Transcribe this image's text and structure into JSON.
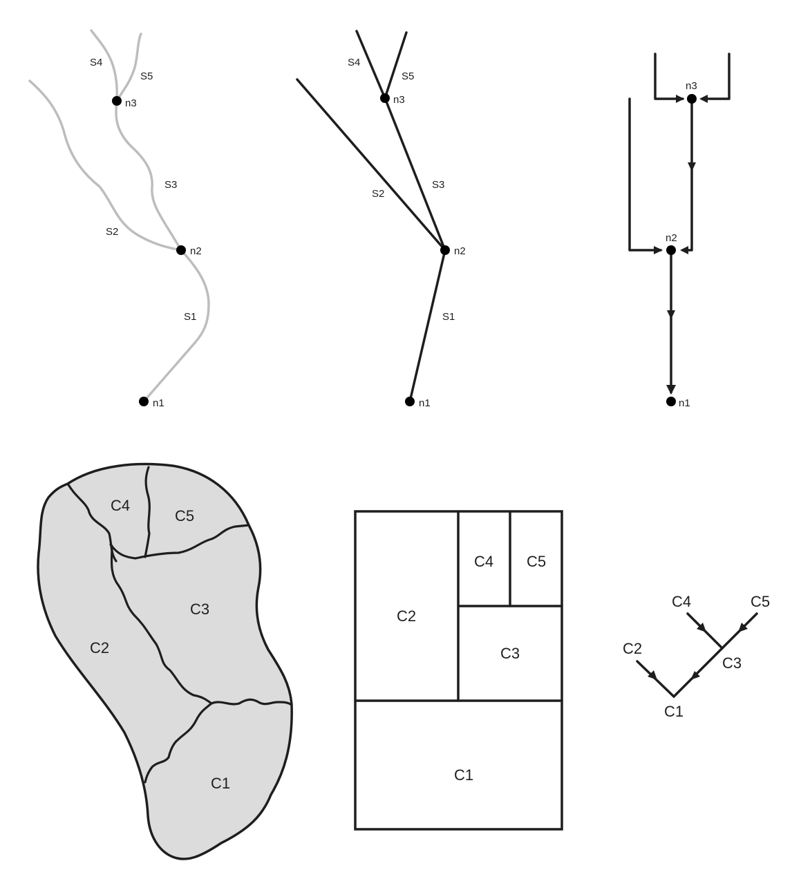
{
  "river_network": {
    "segments": [
      "S1",
      "S2",
      "S3",
      "S4",
      "S5"
    ],
    "nodes": [
      "n1",
      "n2",
      "n3"
    ]
  },
  "line_network": {
    "segments": [
      "S1",
      "S2",
      "S3",
      "S4",
      "S5"
    ],
    "nodes": [
      "n1",
      "n2",
      "n3"
    ]
  },
  "flow_graph": {
    "nodes": [
      "n1",
      "n2",
      "n3"
    ]
  },
  "catchment_map": {
    "catchments": [
      "C1",
      "C2",
      "C3",
      "C4",
      "C5"
    ]
  },
  "box_diagram": {
    "cells": [
      "C1",
      "C2",
      "C3",
      "C4",
      "C5"
    ]
  },
  "tree_diagram": {
    "nodes": [
      "C1",
      "C2",
      "C3",
      "C4",
      "C5"
    ]
  }
}
